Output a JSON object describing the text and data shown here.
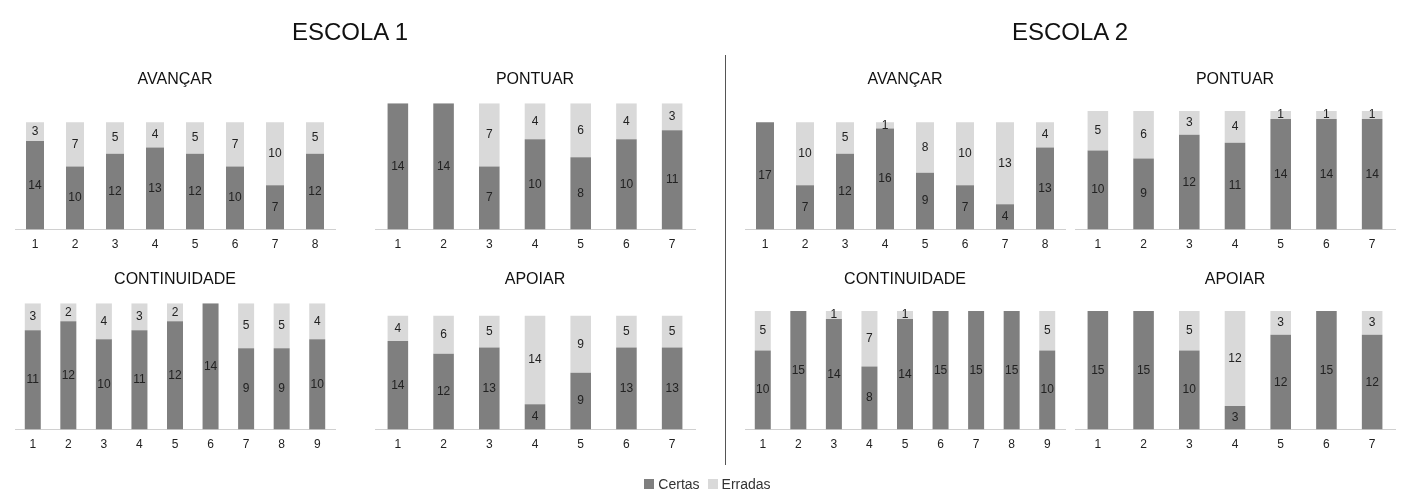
{
  "chart_data": [
    {
      "type": "other",
      "title": "ESCOLA 1"
    },
    {
      "type": "other",
      "title": "ESCOLA 2"
    },
    {
      "type": "bar",
      "title": "AVANÇAR",
      "stacked": true,
      "data_labels": true,
      "tick_labels": "x",
      "grid": false,
      "legend": "bottom",
      "categories": [
        "1",
        "2",
        "3",
        "4",
        "5",
        "6",
        "7",
        "8"
      ],
      "series": [
        {
          "name": "Certas",
          "color": "#7f7f7f",
          "values": [
            14,
            10,
            12,
            13,
            12,
            10,
            7,
            12
          ]
        },
        {
          "name": "Erradas",
          "color": "#d9d9d9",
          "values": [
            3,
            7,
            5,
            4,
            5,
            7,
            10,
            5
          ]
        }
      ]
    },
    {
      "type": "bar",
      "title": "PONTUAR",
      "stacked": true,
      "data_labels": true,
      "tick_labels": "x",
      "grid": false,
      "legend": "bottom",
      "categories": [
        "1",
        "2",
        "3",
        "4",
        "5",
        "6",
        "7"
      ],
      "series": [
        {
          "name": "Certas",
          "color": "#7f7f7f",
          "values": [
            14,
            14,
            7,
            10,
            8,
            10,
            11
          ]
        },
        {
          "name": "Erradas",
          "color": "#d9d9d9",
          "values": [
            null,
            null,
            7,
            4,
            6,
            4,
            3
          ]
        }
      ]
    },
    {
      "type": "bar",
      "title": "CONTINUIDADE",
      "stacked": true,
      "data_labels": true,
      "tick_labels": "x",
      "grid": false,
      "legend": "bottom",
      "categories": [
        "1",
        "2",
        "3",
        "4",
        "5",
        "6",
        "7",
        "8",
        "9"
      ],
      "series": [
        {
          "name": "Certas",
          "color": "#7f7f7f",
          "values": [
            11,
            12,
            10,
            11,
            12,
            14,
            9,
            9,
            10
          ]
        },
        {
          "name": "Erradas",
          "color": "#d9d9d9",
          "values": [
            3,
            2,
            4,
            3,
            2,
            null,
            5,
            5,
            4
          ]
        }
      ]
    },
    {
      "type": "bar",
      "title": "APOIAR",
      "stacked": true,
      "data_labels": true,
      "tick_labels": "x",
      "grid": false,
      "legend": "bottom",
      "categories": [
        "1",
        "2",
        "3",
        "4",
        "5",
        "6",
        "7"
      ],
      "series": [
        {
          "name": "Certas",
          "color": "#7f7f7f",
          "values": [
            14,
            12,
            13,
            4,
            9,
            13,
            13
          ]
        },
        {
          "name": "Erradas",
          "color": "#d9d9d9",
          "values": [
            4,
            6,
            5,
            14,
            9,
            5,
            5
          ]
        }
      ]
    },
    {
      "type": "bar",
      "title": "AVANÇAR",
      "stacked": true,
      "data_labels": true,
      "tick_labels": "x",
      "grid": false,
      "legend": "bottom",
      "categories": [
        "1",
        "2",
        "3",
        "4",
        "5",
        "6",
        "7",
        "8"
      ],
      "series": [
        {
          "name": "Certas",
          "color": "#7f7f7f",
          "values": [
            17,
            7,
            12,
            16,
            9,
            7,
            4,
            13
          ]
        },
        {
          "name": "Erradas",
          "color": "#d9d9d9",
          "values": [
            null,
            10,
            5,
            1,
            8,
            10,
            13,
            4
          ]
        }
      ]
    },
    {
      "type": "bar",
      "title": "PONTUAR",
      "stacked": true,
      "data_labels": true,
      "tick_labels": "x",
      "grid": false,
      "legend": "bottom",
      "categories": [
        "1",
        "2",
        "3",
        "4",
        "5",
        "6",
        "7"
      ],
      "series": [
        {
          "name": "Certas",
          "color": "#7f7f7f",
          "values": [
            10,
            9,
            12,
            11,
            14,
            14,
            14
          ]
        },
        {
          "name": "Erradas",
          "color": "#d9d9d9",
          "values": [
            5,
            6,
            3,
            4,
            1,
            1,
            1
          ]
        }
      ]
    },
    {
      "type": "bar",
      "title": "CONTINUIDADE",
      "stacked": true,
      "data_labels": true,
      "tick_labels": "x",
      "grid": false,
      "legend": "bottom",
      "categories": [
        "1",
        "2",
        "3",
        "4",
        "5",
        "6",
        "7",
        "8",
        "9"
      ],
      "series": [
        {
          "name": "Certas",
          "color": "#7f7f7f",
          "values": [
            10,
            15,
            14,
            8,
            14,
            15,
            15,
            15,
            10
          ]
        },
        {
          "name": "Erradas",
          "color": "#d9d9d9",
          "values": [
            5,
            null,
            1,
            7,
            1,
            null,
            null,
            null,
            5
          ]
        }
      ]
    },
    {
      "type": "bar",
      "title": "APOIAR",
      "stacked": true,
      "data_labels": true,
      "tick_labels": "x",
      "grid": false,
      "legend": "bottom",
      "categories": [
        "1",
        "2",
        "3",
        "4",
        "5",
        "6",
        "7"
      ],
      "series": [
        {
          "name": "Certas",
          "color": "#7f7f7f",
          "values": [
            15,
            15,
            10,
            3,
            12,
            15,
            12
          ]
        },
        {
          "name": "Erradas",
          "color": "#d9d9d9",
          "values": [
            null,
            null,
            5,
            12,
            3,
            null,
            3
          ]
        }
      ]
    }
  ]
}
